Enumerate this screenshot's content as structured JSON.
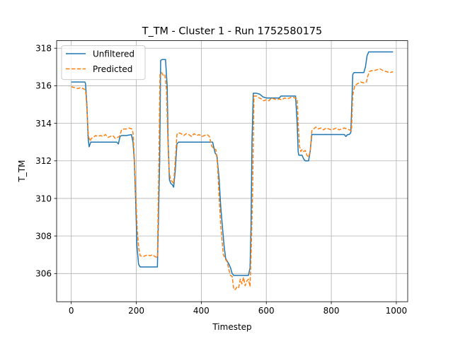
{
  "chart_data": {
    "type": "line",
    "title": "T_TM - Cluster 1 - Run 1752580175",
    "xlabel": "Timestep",
    "ylabel": "T_TM",
    "xlim": [
      -45,
      1035
    ],
    "ylim": [
      304.5,
      318.4
    ],
    "xticks": [
      0,
      200,
      400,
      600,
      800,
      1000
    ],
    "yticks": [
      306,
      308,
      310,
      312,
      314,
      316,
      318
    ],
    "grid": true,
    "legend_position": "upper-left",
    "series": [
      {
        "name": "Unfiltered",
        "color": "#1f77b4",
        "style": "solid",
        "x": [
          0,
          42,
          44,
          48,
          52,
          55,
          60,
          80,
          100,
          120,
          140,
          145,
          150,
          155,
          160,
          170,
          185,
          190,
          194,
          198,
          202,
          207,
          212,
          220,
          240,
          255,
          265,
          272,
          275,
          280,
          290,
          295,
          298,
          302,
          306,
          310,
          315,
          320,
          325,
          330,
          340,
          360,
          380,
          400,
          420,
          435,
          440,
          443,
          448,
          455,
          460,
          470,
          475,
          480,
          485,
          490,
          495,
          500,
          505,
          510,
          520,
          535,
          545,
          550,
          553,
          556,
          560,
          570,
          580,
          590,
          600,
          620,
          640,
          645,
          660,
          680,
          690,
          695,
          698,
          700,
          705,
          710,
          715,
          720,
          730,
          735,
          740,
          745,
          760,
          780,
          800,
          820,
          840,
          845,
          850,
          855,
          860,
          863,
          866,
          870,
          880,
          900,
          905,
          910,
          915,
          920,
          940,
          960,
          980,
          990
        ],
        "values": [
          316.2,
          316.2,
          316.1,
          315.0,
          313.2,
          312.75,
          313.0,
          313.0,
          313.0,
          313.0,
          313.0,
          312.9,
          313.3,
          313.35,
          313.35,
          313.35,
          313.4,
          313.0,
          312.0,
          310.0,
          307.5,
          306.5,
          306.35,
          306.35,
          306.35,
          306.35,
          306.35,
          312.0,
          317.35,
          317.4,
          317.4,
          316.0,
          313.0,
          311.0,
          310.8,
          310.75,
          310.6,
          311.5,
          312.9,
          313.0,
          313.0,
          313.0,
          313.0,
          313.0,
          313.0,
          313.0,
          312.6,
          312.4,
          312.3,
          311.0,
          309.5,
          307.5,
          306.8,
          306.65,
          306.5,
          306.3,
          306.0,
          305.9,
          305.9,
          305.9,
          305.9,
          305.9,
          305.9,
          306.3,
          308.5,
          313.0,
          315.6,
          315.6,
          315.55,
          315.4,
          315.35,
          315.35,
          315.35,
          315.45,
          315.45,
          315.45,
          315.45,
          314.0,
          312.5,
          312.3,
          312.3,
          312.3,
          312.1,
          312.0,
          312.0,
          312.5,
          313.4,
          313.4,
          313.4,
          313.4,
          313.4,
          313.4,
          313.4,
          313.3,
          313.4,
          313.4,
          313.5,
          315.0,
          316.6,
          316.7,
          316.7,
          316.7,
          317.0,
          317.6,
          317.8,
          317.8,
          317.8,
          317.8,
          317.8,
          317.8
        ],
        "samples": 1000
      },
      {
        "name": "Predicted",
        "color": "#ff7f0e",
        "style": "dashed",
        "x": [
          0,
          10,
          20,
          30,
          42,
          45,
          49,
          53,
          58,
          62,
          68,
          75,
          82,
          90,
          98,
          105,
          113,
          120,
          128,
          135,
          142,
          148,
          155,
          162,
          170,
          178,
          186,
          190,
          194,
          198,
          203,
          208,
          212,
          220,
          228,
          235,
          242,
          250,
          258,
          265,
          270,
          273,
          278,
          283,
          288,
          293,
          297,
          301,
          305,
          310,
          315,
          320,
          325,
          330,
          338,
          346,
          354,
          362,
          370,
          378,
          386,
          394,
          402,
          410,
          418,
          425,
          432,
          438,
          445,
          450,
          455,
          460,
          468,
          475,
          480,
          485,
          490,
          495,
          500,
          505,
          510,
          515,
          520,
          525,
          530,
          535,
          540,
          545,
          550,
          554,
          558,
          562,
          570,
          578,
          585,
          592,
          600,
          608,
          616,
          624,
          632,
          640,
          648,
          656,
          664,
          672,
          680,
          688,
          695,
          698,
          702,
          706,
          710,
          715,
          720,
          725,
          730,
          735,
          740,
          746,
          752,
          760,
          768,
          776,
          784,
          792,
          800,
          808,
          816,
          824,
          832,
          840,
          848,
          856,
          862,
          866,
          872,
          880,
          890,
          900,
          908,
          912,
          917,
          922,
          930,
          940,
          950,
          960,
          970,
          980,
          990
        ],
        "values": [
          315.95,
          315.9,
          315.85,
          315.9,
          315.8,
          315.6,
          314.5,
          313.3,
          313.05,
          313.2,
          313.25,
          313.35,
          313.3,
          313.35,
          313.3,
          313.4,
          313.25,
          313.3,
          313.35,
          313.2,
          313.25,
          313.3,
          313.65,
          313.7,
          313.7,
          313.75,
          313.7,
          313.5,
          312.2,
          310.5,
          308.3,
          307.3,
          306.95,
          306.9,
          306.95,
          307.0,
          306.95,
          307.0,
          306.9,
          306.85,
          312.5,
          316.6,
          316.7,
          316.55,
          316.6,
          315.8,
          313.2,
          311.5,
          311.0,
          310.9,
          310.8,
          312.0,
          313.4,
          313.5,
          313.45,
          313.35,
          313.45,
          313.4,
          313.3,
          313.45,
          313.35,
          313.4,
          313.3,
          313.35,
          313.4,
          313.3,
          312.8,
          312.65,
          312.6,
          311.8,
          310.0,
          308.5,
          307.0,
          306.75,
          306.6,
          306.2,
          305.9,
          305.85,
          305.15,
          305.15,
          305.3,
          305.25,
          305.7,
          305.45,
          305.8,
          305.35,
          305.6,
          305.7,
          305.3,
          307.5,
          310.5,
          315.45,
          315.45,
          315.35,
          315.3,
          315.2,
          315.25,
          315.2,
          315.35,
          315.3,
          315.25,
          315.3,
          315.25,
          315.35,
          315.3,
          315.35,
          315.4,
          315.35,
          315.3,
          314.0,
          312.8,
          312.5,
          312.6,
          312.5,
          312.55,
          312.3,
          312.2,
          312.5,
          313.6,
          313.7,
          313.8,
          313.7,
          313.75,
          313.65,
          313.75,
          313.7,
          313.65,
          313.7,
          313.75,
          313.65,
          313.7,
          313.75,
          313.7,
          313.65,
          313.6,
          315.5,
          316.0,
          316.1,
          316.2,
          316.15,
          316.2,
          316.5,
          316.75,
          316.8,
          316.8,
          316.85,
          316.9,
          316.8,
          316.75,
          316.7,
          316.75
        ]
      }
    ]
  }
}
